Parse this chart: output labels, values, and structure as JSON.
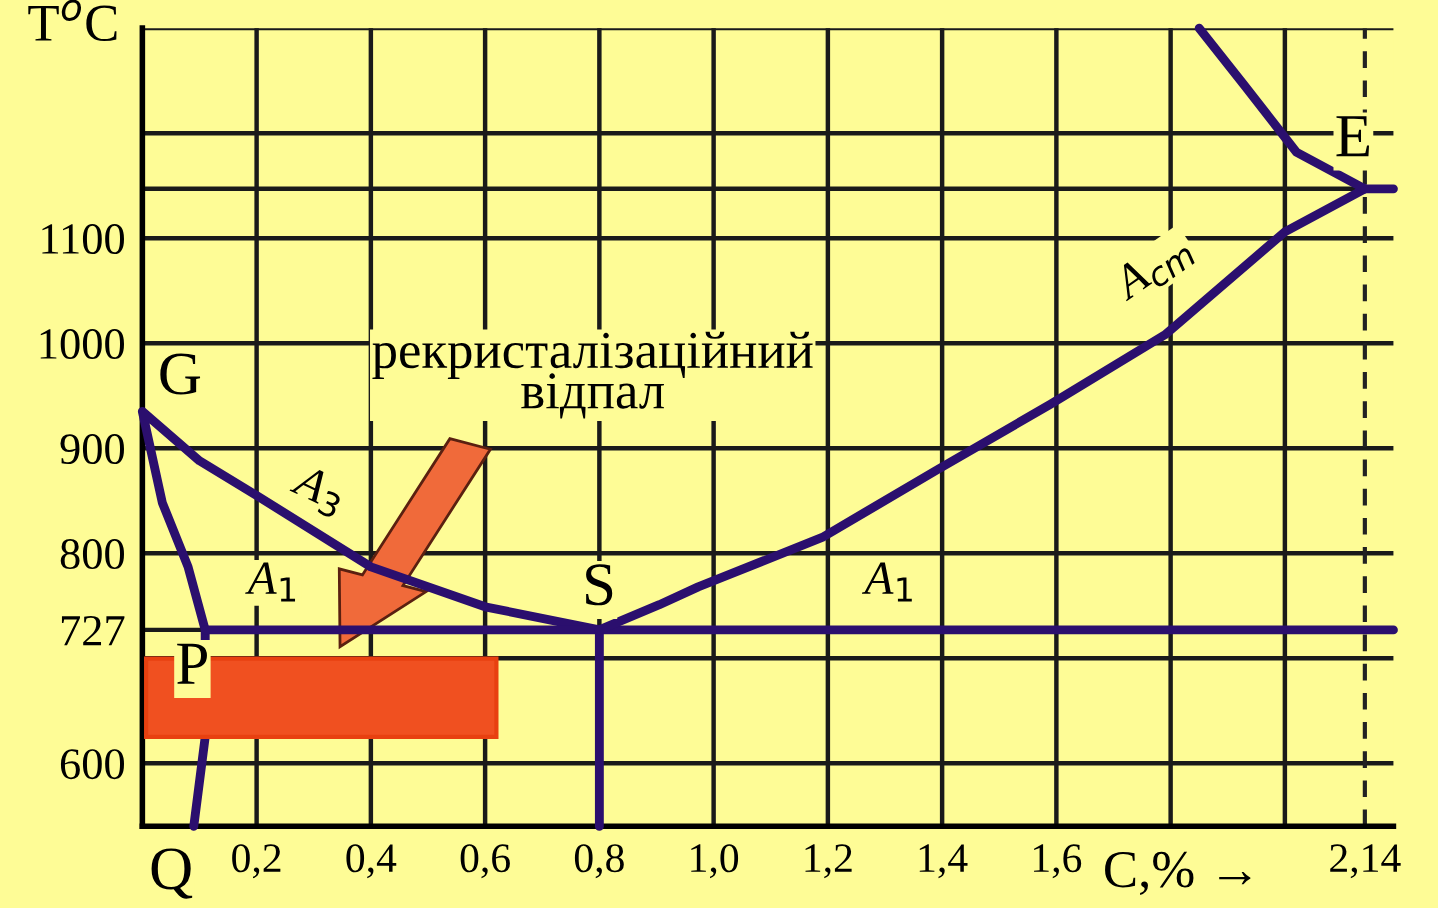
{
  "chart_data": {
    "type": "line",
    "ylabel": "T$^{o}$C",
    "xlabel": "C,% →",
    "xlim": [
      0,
      2.19
    ],
    "ylim": [
      540,
      1300
    ],
    "xticks": [
      {
        "value": 0.2,
        "label": "0,2"
      },
      {
        "value": 0.4,
        "label": "0,4"
      },
      {
        "value": 0.6,
        "label": "0,6"
      },
      {
        "value": 0.8,
        "label": "0,8"
      },
      {
        "value": 1.0,
        "label": "1,0"
      },
      {
        "value": 1.2,
        "label": "1,2"
      },
      {
        "value": 1.4,
        "label": "1,4"
      },
      {
        "value": 1.6,
        "label": "1,6"
      },
      {
        "value": 1.8,
        "label": null
      },
      {
        "value": 2.0,
        "label": null
      },
      {
        "value": 2.14,
        "label": "2,14"
      }
    ],
    "yticks": [
      600,
      {
        "value": 700,
        "label": null
      },
      727,
      800,
      900,
      1000,
      1100,
      {
        "value": 1147,
        "label": null
      },
      {
        "value": 1200,
        "label": null
      },
      {
        "value": 1300,
        "label": null
      }
    ],
    "grid": true,
    "legend": false,
    "series": [
      {
        "color": "#2b0f6e",
        "x": [
          0.8,
          0.6,
          0.4,
          0.2,
          0.1,
          0,
          0.035,
          0.08,
          0.11,
          0.11,
          0.09
        ],
        "values": [
          727,
          749,
          787,
          855,
          888,
          935,
          848,
          787,
          727,
          625,
          540
        ]
      },
      {
        "color": "#2b0f6e",
        "x": [
          0.11,
          2.19
        ],
        "values": [
          727,
          727
        ]
      },
      {
        "color": "#2b0f6e",
        "x": [
          0.8,
          0.8
        ],
        "values": [
          727,
          540
        ]
      },
      {
        "color": "#2b0f6e",
        "x": [
          0.8,
          0.905,
          0.973,
          1.19,
          1.39,
          1.59,
          1.79,
          2.0,
          2.14
        ],
        "values": [
          727,
          751,
          768,
          815,
          879,
          942,
          1008,
          1106,
          1147
        ]
      },
      {
        "color": "#2b0f6e",
        "x": [
          1.85,
          1.93,
          2.02,
          2.14
        ],
        "values": [
          1300,
          1245,
          1182,
          1147
        ]
      },
      {
        "color": "#2b0f6e",
        "x": [
          2.14,
          2.19
        ],
        "values": [
          1147,
          1147
        ]
      }
    ],
    "ref_lines": [
      {
        "axis": "x",
        "value": 2.14,
        "line_style": "dashed",
        "color": "#222222"
      }
    ],
    "annotations": [
      "G",
      "P",
      "S",
      "E",
      "Q",
      "A$_{3}$",
      "A$_{1}$",
      "A$_{1}$",
      "A$_{cm}$",
      "рекристалізаційний\nвідпал"
    ]
  }
}
